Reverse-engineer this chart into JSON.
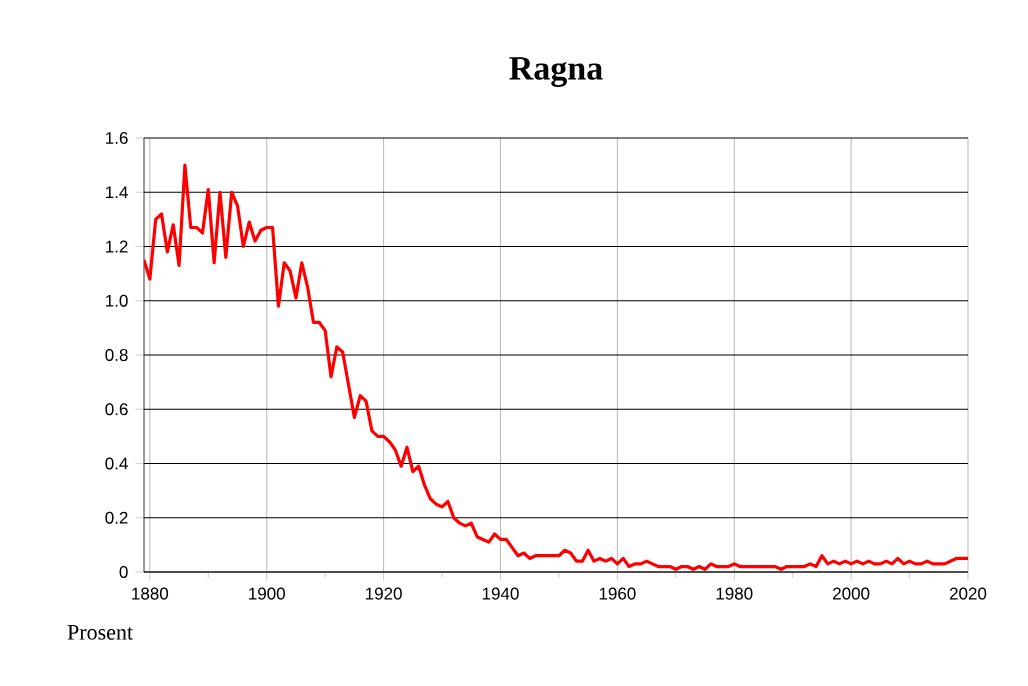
{
  "chart_data": {
    "type": "line",
    "title": "Ragna",
    "ylabel": "Prosent",
    "x": [
      1879,
      1880,
      1881,
      1882,
      1883,
      1884,
      1885,
      1886,
      1887,
      1888,
      1889,
      1890,
      1891,
      1892,
      1893,
      1894,
      1895,
      1896,
      1897,
      1898,
      1899,
      1900,
      1901,
      1902,
      1903,
      1904,
      1905,
      1906,
      1907,
      1908,
      1909,
      1910,
      1911,
      1912,
      1913,
      1914,
      1915,
      1916,
      1917,
      1918,
      1919,
      1920,
      1921,
      1922,
      1923,
      1924,
      1925,
      1926,
      1927,
      1928,
      1929,
      1930,
      1931,
      1932,
      1933,
      1934,
      1935,
      1936,
      1937,
      1938,
      1939,
      1940,
      1941,
      1942,
      1943,
      1944,
      1945,
      1946,
      1947,
      1948,
      1949,
      1950,
      1951,
      1952,
      1953,
      1954,
      1955,
      1956,
      1957,
      1958,
      1959,
      1960,
      1961,
      1962,
      1963,
      1964,
      1965,
      1966,
      1967,
      1968,
      1969,
      1970,
      1971,
      1972,
      1973,
      1974,
      1975,
      1976,
      1977,
      1978,
      1979,
      1980,
      1981,
      1982,
      1983,
      1984,
      1985,
      1986,
      1987,
      1988,
      1989,
      1990,
      1991,
      1992,
      1993,
      1994,
      1995,
      1996,
      1997,
      1998,
      1999,
      2000,
      2001,
      2002,
      2003,
      2004,
      2005,
      2006,
      2007,
      2008,
      2009,
      2010,
      2011,
      2012,
      2013,
      2014,
      2015,
      2016,
      2017,
      2018,
      2019,
      2020
    ],
    "series": [
      {
        "color": "#ff0000",
        "values": [
          1.15,
          1.08,
          1.3,
          1.32,
          1.18,
          1.28,
          1.13,
          1.5,
          1.27,
          1.27,
          1.25,
          1.41,
          1.14,
          1.4,
          1.16,
          1.4,
          1.35,
          1.2,
          1.29,
          1.22,
          1.26,
          1.27,
          1.27,
          0.98,
          1.14,
          1.11,
          1.01,
          1.14,
          1.05,
          0.92,
          0.92,
          0.89,
          0.72,
          0.83,
          0.81,
          0.69,
          0.57,
          0.65,
          0.63,
          0.52,
          0.5,
          0.5,
          0.48,
          0.45,
          0.39,
          0.46,
          0.37,
          0.39,
          0.32,
          0.27,
          0.25,
          0.24,
          0.26,
          0.2,
          0.18,
          0.17,
          0.18,
          0.13,
          0.12,
          0.11,
          0.14,
          0.12,
          0.12,
          0.09,
          0.06,
          0.07,
          0.05,
          0.06,
          0.06,
          0.06,
          0.06,
          0.06,
          0.08,
          0.07,
          0.04,
          0.04,
          0.08,
          0.04,
          0.05,
          0.04,
          0.05,
          0.03,
          0.05,
          0.02,
          0.03,
          0.03,
          0.04,
          0.03,
          0.02,
          0.02,
          0.02,
          0.01,
          0.02,
          0.02,
          0.01,
          0.02,
          0.01,
          0.03,
          0.02,
          0.02,
          0.02,
          0.03,
          0.02,
          0.02,
          0.02,
          0.02,
          0.02,
          0.02,
          0.02,
          0.01,
          0.02,
          0.02,
          0.02,
          0.02,
          0.03,
          0.02,
          0.06,
          0.03,
          0.04,
          0.03,
          0.04,
          0.03,
          0.04,
          0.03,
          0.04,
          0.03,
          0.03,
          0.04,
          0.03,
          0.05,
          0.03,
          0.04,
          0.03,
          0.03,
          0.04,
          0.03,
          0.03,
          0.03,
          0.04,
          0.05,
          0.05,
          0.05
        ]
      }
    ],
    "xlim": [
      1879,
      2020
    ],
    "xticks": [
      1880,
      1900,
      1920,
      1940,
      1960,
      1980,
      2000,
      2020
    ],
    "ylim": [
      0,
      1.6
    ],
    "yticks": [
      0,
      {
        "value": 0.2,
        "label": "0.2"
      },
      {
        "value": 0.4,
        "label": "0.4"
      },
      {
        "value": 0.6,
        "label": "0.6"
      },
      {
        "value": 0.8,
        "label": "0.8"
      },
      {
        "value": 1.0,
        "label": "1.0"
      },
      {
        "value": 1.2,
        "label": "1.2"
      },
      {
        "value": 1.4,
        "label": "1.4"
      },
      {
        "value": 1.6,
        "label": "1.6"
      }
    ],
    "grid": true,
    "marker": "none",
    "line_style": "solid"
  }
}
